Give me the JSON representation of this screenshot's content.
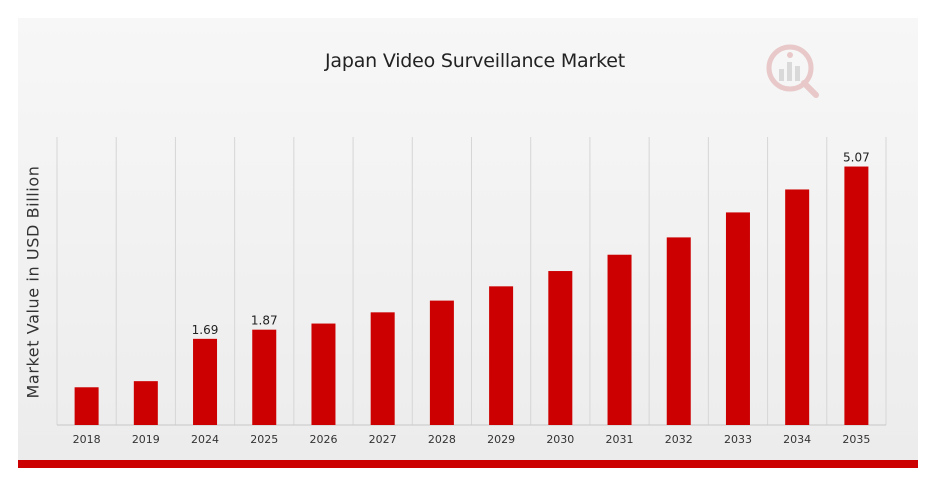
{
  "chart_data": {
    "type": "bar",
    "title": "Japan Video Surveillance Market",
    "xlabel": "",
    "ylabel": "Market Value in USD Billion",
    "categories": [
      "2018",
      "2019",
      "2024",
      "2025",
      "2026",
      "2027",
      "2028",
      "2029",
      "2030",
      "2031",
      "2032",
      "2033",
      "2034",
      "2035"
    ],
    "values": [
      0.74,
      0.86,
      1.69,
      1.87,
      1.99,
      2.21,
      2.44,
      2.72,
      3.02,
      3.34,
      3.68,
      4.17,
      4.62,
      5.07
    ],
    "data_labels": {
      "2024": "1.69",
      "2025": "1.87",
      "2035": "5.07"
    },
    "ylim": [
      0,
      5.1
    ],
    "grid": "vertical",
    "bar_color": "#cc0000"
  },
  "colors": {
    "accent": "#cc0000",
    "grid": "#d6d6d6"
  },
  "logo": {
    "icon": "analytics-logo-icon"
  }
}
